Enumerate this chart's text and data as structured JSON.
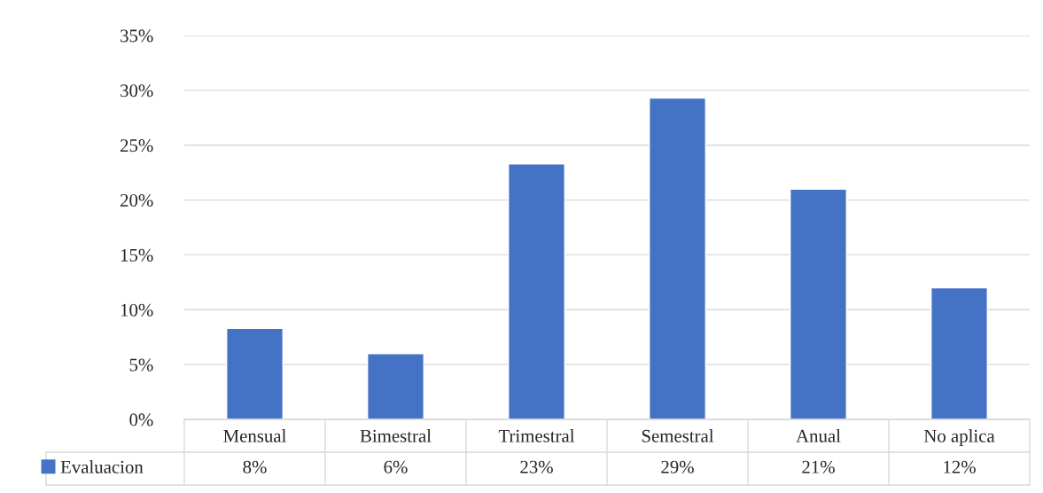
{
  "chart_data": {
    "type": "bar",
    "categories": [
      "Mensual",
      "Bimestral",
      "Trimestral",
      "Semestral",
      "Anual",
      "No aplica"
    ],
    "series": [
      {
        "name": "Evaluacion",
        "color": "#4472c4",
        "values": [
          8.3,
          6,
          23.3,
          29.3,
          21,
          12
        ],
        "value_labels": [
          "8%",
          "6%",
          "23%",
          "29%",
          "21%",
          "12%"
        ]
      }
    ],
    "ylim": [
      0,
      35
    ],
    "yticks": [
      {
        "value": 0,
        "label": "0%"
      },
      {
        "value": 5,
        "label": "5%"
      },
      {
        "value": 10,
        "label": "10%"
      },
      {
        "value": 15,
        "label": "15%"
      },
      {
        "value": 20,
        "label": "20%"
      },
      {
        "value": 25,
        "label": "25%"
      },
      {
        "value": 30,
        "label": "30%"
      },
      {
        "value": 35,
        "label": "35%"
      }
    ],
    "grid": "y",
    "legend": "bottom"
  }
}
